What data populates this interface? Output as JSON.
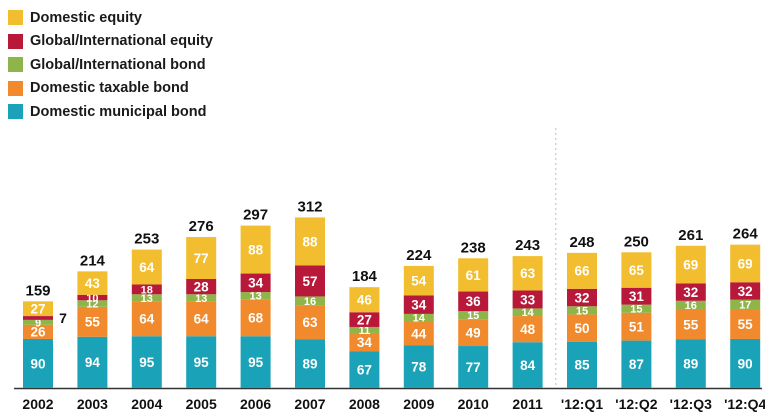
{
  "chart_data": {
    "type": "bar",
    "stacked": true,
    "categories": [
      "2002",
      "2003",
      "2004",
      "2005",
      "2006",
      "2007",
      "2008",
      "2009",
      "2010",
      "2011",
      "'12:Q1",
      "'12:Q2",
      "'12:Q3",
      "'12:Q4"
    ],
    "totals": [
      159,
      214,
      253,
      276,
      297,
      312,
      184,
      224,
      238,
      243,
      248,
      250,
      261,
      264
    ],
    "series": [
      {
        "name": "Domestic municipal bond",
        "color": "#1aa3b8",
        "values": [
          90,
          94,
          95,
          95,
          95,
          89,
          67,
          78,
          77,
          84,
          85,
          87,
          89,
          90
        ]
      },
      {
        "name": "Domestic taxable bond",
        "color": "#f08a2c",
        "values": [
          26,
          55,
          64,
          64,
          68,
          63,
          34,
          44,
          49,
          48,
          50,
          51,
          55,
          55
        ]
      },
      {
        "name": "Global/International bond",
        "color": "#8fb54a",
        "values": [
          9,
          12,
          13,
          13,
          13,
          16,
          11,
          14,
          15,
          14,
          15,
          15,
          16,
          17
        ]
      },
      {
        "name": "Global/International equity",
        "color": "#b8183a",
        "values": [
          7,
          10,
          18,
          28,
          34,
          57,
          27,
          34,
          36,
          33,
          32,
          31,
          32,
          32
        ]
      },
      {
        "name": "Domestic equity",
        "color": "#f2bd2e",
        "values": [
          27,
          43,
          64,
          77,
          88,
          88,
          46,
          54,
          61,
          63,
          66,
          65,
          69,
          69
        ]
      }
    ],
    "legend_order": [
      "Domestic equity",
      "Global/International equity",
      "Global/International bond",
      "Domestic taxable bond",
      "Domestic municipal bond"
    ],
    "outside_labels": [
      {
        "category": "2002",
        "series": "Global/International equity",
        "text": "7"
      }
    ],
    "divider_after": "2011",
    "legend_position": "top-left",
    "grid": false,
    "ylim": [
      0,
      340
    ],
    "title": "",
    "xlabel": "",
    "ylabel": ""
  }
}
